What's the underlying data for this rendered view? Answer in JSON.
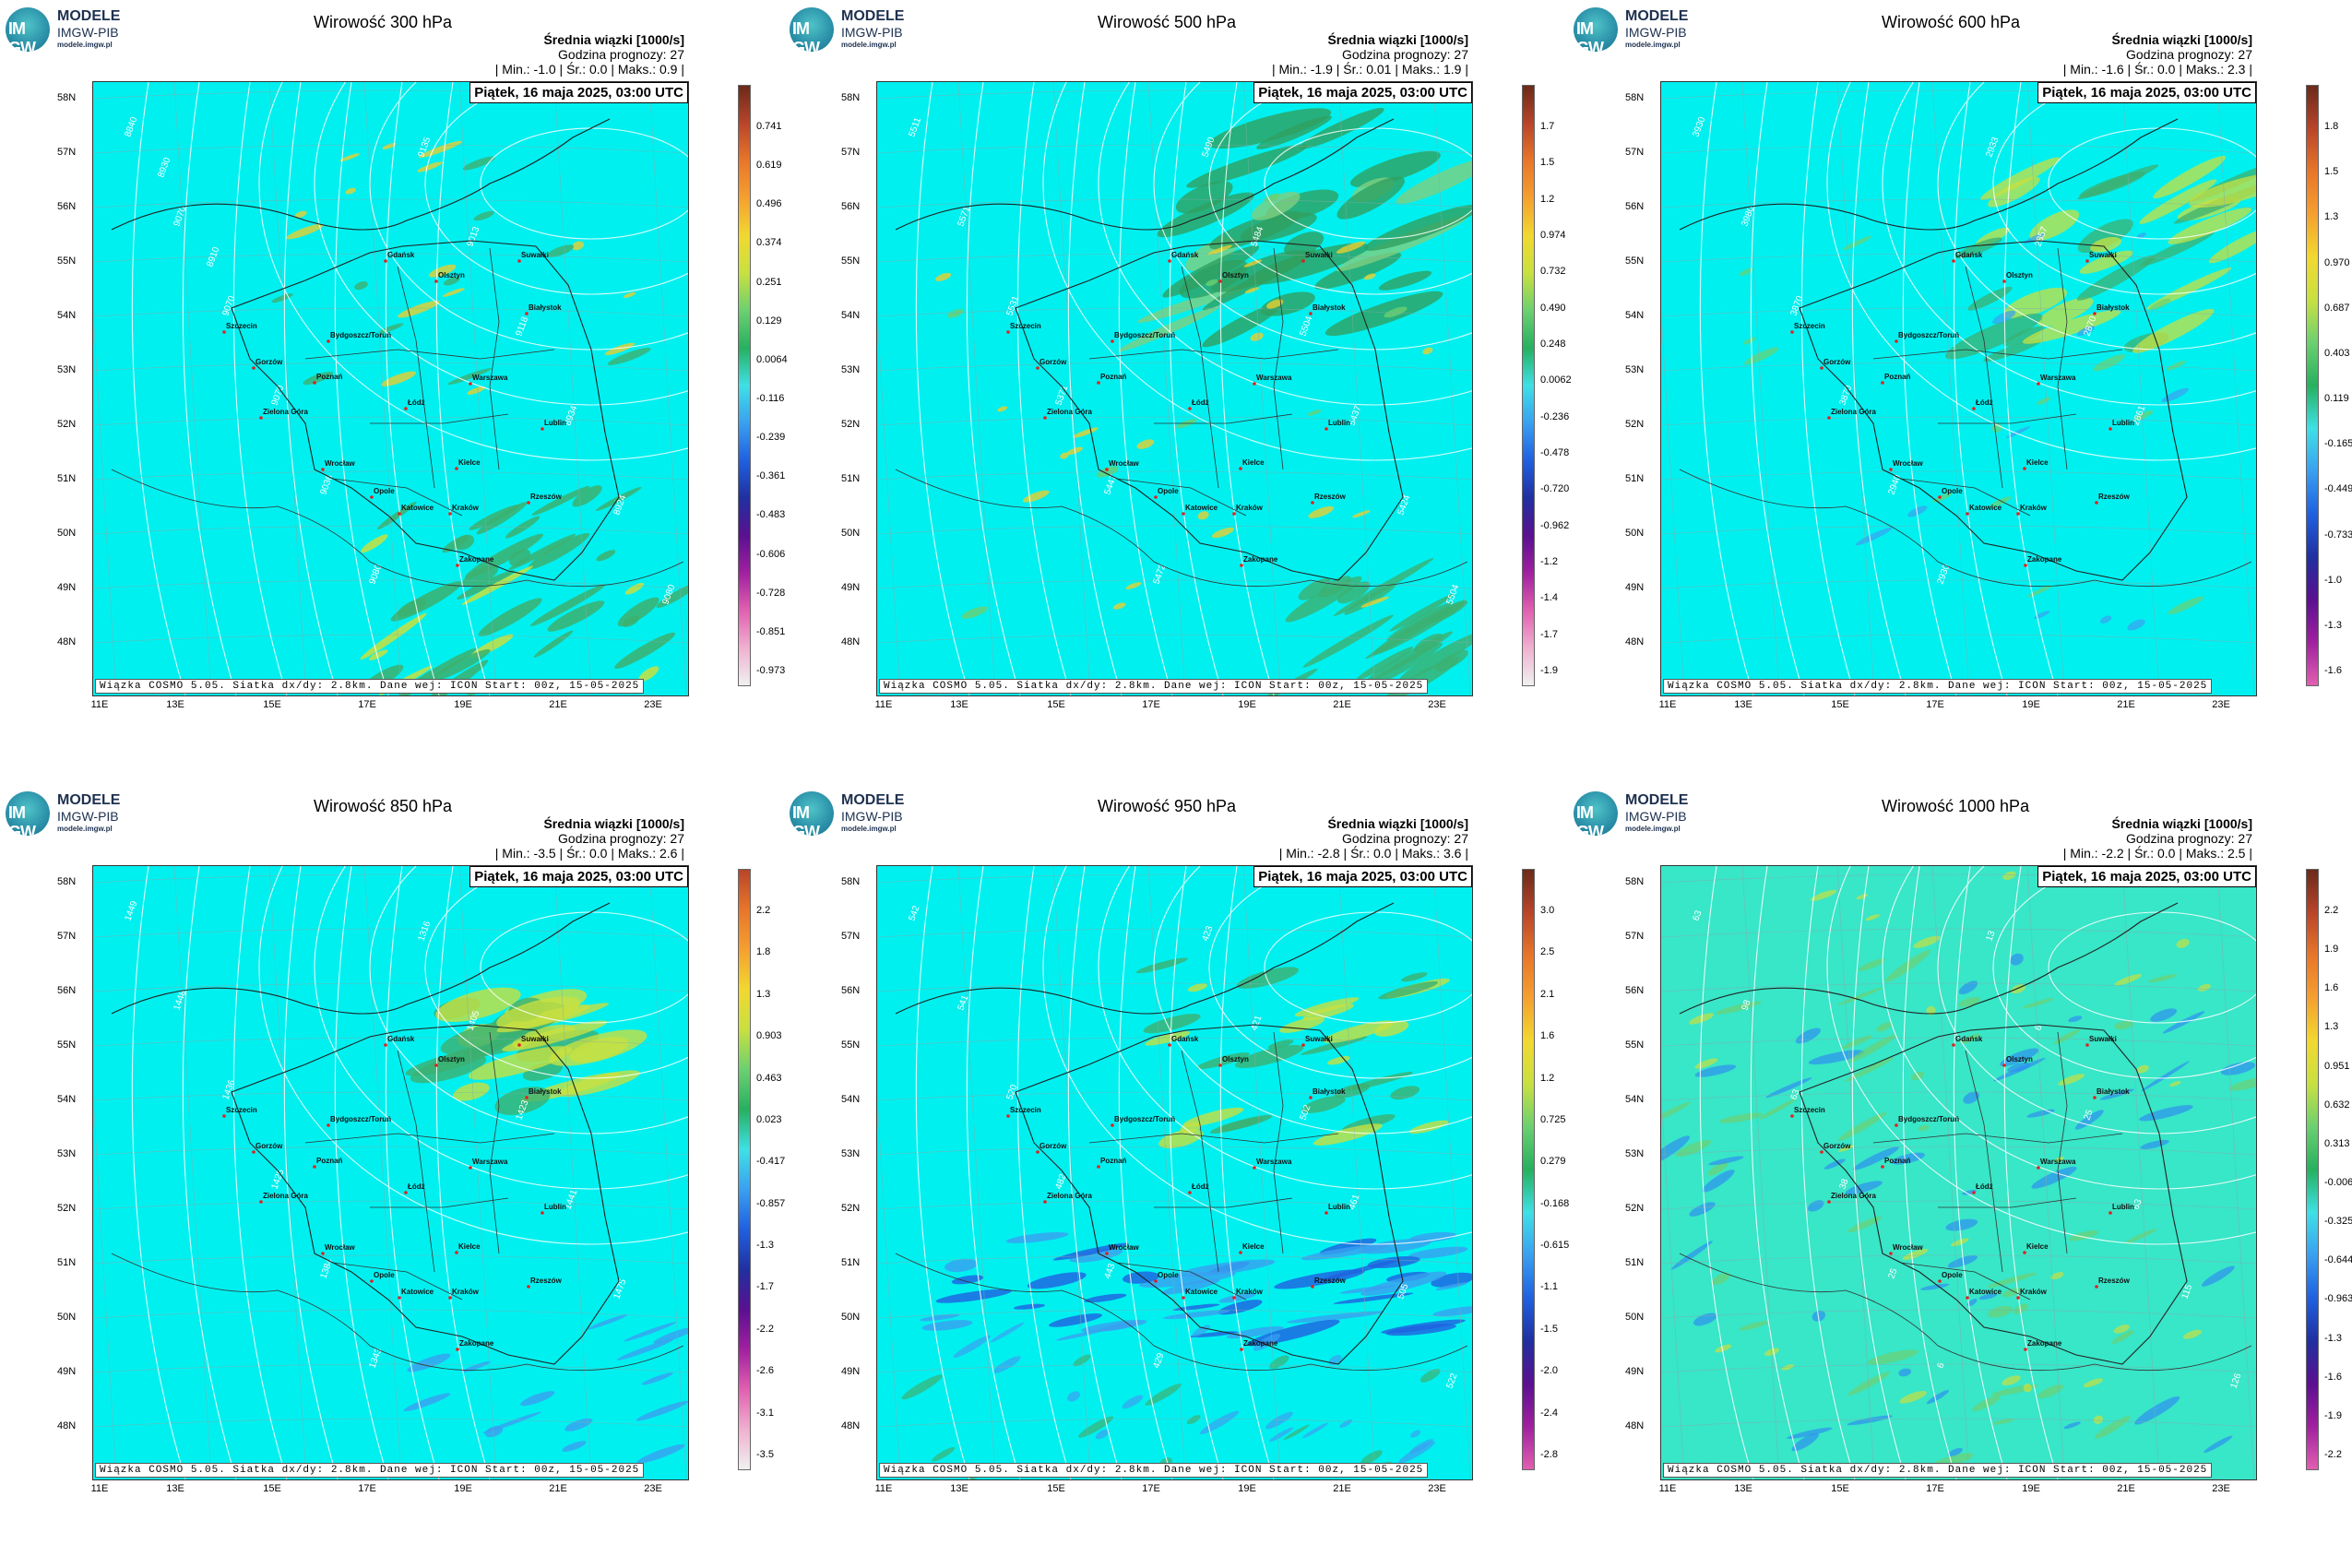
{
  "panels": [
    {
      "title": "Wirowość 300 hPa",
      "min": "-1.0",
      "avg": "0.0",
      "max": "0.9",
      "contours": [
        "8840",
        "9070",
        "9070",
        "9070",
        "9036",
        "9080",
        "9135",
        "9013",
        "9118",
        "8934",
        "8924",
        "9080",
        "8930",
        "8910"
      ],
      "colorbar": [
        "0.741",
        "0.619",
        "0.496",
        "0.374",
        "0.251",
        "0.129",
        "0.0064",
        "-0.116",
        "-0.239",
        "-0.361",
        "-0.483",
        "-0.606",
        "-0.728",
        "-0.851",
        "-0.973"
      ],
      "colorbar_colors": [
        "#6b2a1a",
        "#b8452a",
        "#e8762a",
        "#f4a030",
        "#f2d830",
        "#c8e040",
        "#6cd070",
        "#27b060",
        "#3fe0e6",
        "#3aa0f0",
        "#2060e0",
        "#2030a0",
        "#5a1090",
        "#a020a0",
        "#e060b0",
        "#f0b0d0",
        "#f0f0f0"
      ],
      "features": "bands-sw"
    },
    {
      "title": "Wirowość 500 hPa",
      "min": "-1.9",
      "avg": "0.01",
      "max": "1.9",
      "contours": [
        "5511",
        "5571",
        "5531",
        "5371",
        "5447",
        "5472",
        "5490",
        "5484",
        "5504",
        "5437",
        "5424",
        "5504"
      ],
      "colorbar": [
        "1.7",
        "1.5",
        "1.2",
        "0.974",
        "0.732",
        "0.490",
        "0.248",
        "0.0062",
        "-0.236",
        "-0.478",
        "-0.720",
        "-0.962",
        "-1.2",
        "-1.4",
        "-1.7",
        "-1.9"
      ],
      "colorbar_colors": [
        "#6b2a1a",
        "#b8452a",
        "#e8762a",
        "#f4a030",
        "#f2d830",
        "#c8e040",
        "#6cd070",
        "#27b060",
        "#3fe0e6",
        "#3aa0f0",
        "#2060e0",
        "#2030a0",
        "#5a1090",
        "#a020a0",
        "#e060b0",
        "#f0b0d0",
        "#f0f0f0"
      ],
      "features": "bands-north"
    },
    {
      "title": "Wirowość 600 hPa",
      "min": "-1.6",
      "avg": "0.0",
      "max": "2.3",
      "contours": [
        "3930",
        "3980",
        "3870",
        "3870",
        "2940",
        "2930",
        "2933",
        "2857",
        "2870",
        "2861"
      ],
      "colorbar": [
        "1.8",
        "1.5",
        "1.3",
        "0.970",
        "0.687",
        "0.403",
        "0.119",
        "-0.165",
        "-0.449",
        "-0.733",
        "-1.0",
        "-1.3",
        "-1.6"
      ],
      "colorbar_colors": [
        "#6b2a1a",
        "#b8452a",
        "#e8762a",
        "#f4a030",
        "#f2d830",
        "#c8e040",
        "#6cd070",
        "#27b060",
        "#3fe0e6",
        "#3aa0f0",
        "#2060e0",
        "#2030a0",
        "#5a1090",
        "#a020a0",
        "#e060b0"
      ],
      "features": "bands-north-weak"
    },
    {
      "title": "Wirowość 850 hPa",
      "min": "-3.5",
      "avg": "0.0",
      "max": "2.6",
      "contours": [
        "1449",
        "1448",
        "1436",
        "1425",
        "1384",
        "1343",
        "1316",
        "1405",
        "1423",
        "1441",
        "1475"
      ],
      "colorbar": [
        "2.2",
        "1.8",
        "1.3",
        "0.903",
        "0.463",
        "0.023",
        "-0.417",
        "-0.857",
        "-1.3",
        "-1.7",
        "-2.2",
        "-2.6",
        "-3.1",
        "-3.5"
      ],
      "colorbar_colors": [
        "#b8452a",
        "#e8762a",
        "#f4a030",
        "#f2d830",
        "#c8e040",
        "#6cd070",
        "#27b060",
        "#3fe0e6",
        "#3aa0f0",
        "#2060e0",
        "#2030a0",
        "#5a1090",
        "#a020a0",
        "#e060b0",
        "#f0b0d0",
        "#f0f0f0"
      ],
      "features": "blob-north"
    },
    {
      "title": "Wirowość 950 hPa",
      "min": "-2.8",
      "avg": "0.0",
      "max": "3.6",
      "contours": [
        "542",
        "541",
        "520",
        "482",
        "443",
        "429",
        "423",
        "421",
        "502",
        "461",
        "505",
        "522"
      ],
      "colorbar": [
        "3.0",
        "2.5",
        "2.1",
        "1.6",
        "1.2",
        "0.725",
        "0.279",
        "-0.168",
        "-0.615",
        "-1.1",
        "-1.5",
        "-2.0",
        "-2.4",
        "-2.8"
      ],
      "colorbar_colors": [
        "#6b2a1a",
        "#b8452a",
        "#e8762a",
        "#f4a030",
        "#f2d830",
        "#c8e040",
        "#6cd070",
        "#27b060",
        "#3fe0e6",
        "#3aa0f0",
        "#2060e0",
        "#2030a0",
        "#5a1090",
        "#a020a0",
        "#e060b0"
      ],
      "features": "blue-south"
    },
    {
      "title": "Wirowość 1000 hPa",
      "min": "-2.2",
      "avg": "0.0",
      "max": "2.5",
      "contours": [
        "63",
        "98",
        "63",
        "38",
        "25",
        "6",
        "13",
        "6",
        "25",
        "63",
        "115",
        "126"
      ],
      "colorbar": [
        "2.2",
        "1.9",
        "1.6",
        "1.3",
        "0.951",
        "0.632",
        "0.313",
        "-0.006",
        "-0.325",
        "-0.644",
        "-0.963",
        "-1.3",
        "-1.6",
        "-1.9",
        "-2.2"
      ],
      "colorbar_colors": [
        "#6b2a1a",
        "#b8452a",
        "#e8762a",
        "#f4a030",
        "#f2d830",
        "#c8e040",
        "#6cd070",
        "#27b060",
        "#3fe0e6",
        "#3aa0f0",
        "#2060e0",
        "#2030a0",
        "#5a1090",
        "#a020a0",
        "#e060b0"
      ],
      "features": "noisy"
    }
  ],
  "common": {
    "logo_line1": "MODELE",
    "logo_line2": "IMGW-PIB",
    "logo_line3": "modele.imgw.pl",
    "logo_mark": "IM GW",
    "info_line1": "Średnia wiązki [1000/s]",
    "info_line2": "Godzina prognozy: 27",
    "min_label": "| Min.:",
    "avg_label": "| Śr.:",
    "max_label": "| Maks.:",
    "date": "Piątek, 16 maja 2025, 03:00 UTC",
    "credit": "Wiązka COSMO 5.05. Siatka dx/dy: 2.8km. Dane wej: ICON Start: 00z, 15-05-2025",
    "lat_labels": [
      "58N",
      "57N",
      "56N",
      "55N",
      "54N",
      "53N",
      "52N",
      "51N",
      "50N",
      "49N",
      "48N"
    ],
    "lon_labels": [
      "11E",
      "13E",
      "15E",
      "17E",
      "19E",
      "21E",
      "23E"
    ],
    "cities": [
      "Gdańsk",
      "Olsztyn",
      "Suwałki",
      "Szczecin",
      "Bydgoszcz/Toruń",
      "Białystok",
      "Gorzów",
      "Poznań",
      "Warszawa",
      "Zielona Góra",
      "Łódź",
      "Lublin",
      "Wrocław",
      "Kielce",
      "Opole",
      "Katowice",
      "Rzeszów",
      "Kraków",
      "Zakopane"
    ],
    "sea_color": "#00f0f0"
  }
}
